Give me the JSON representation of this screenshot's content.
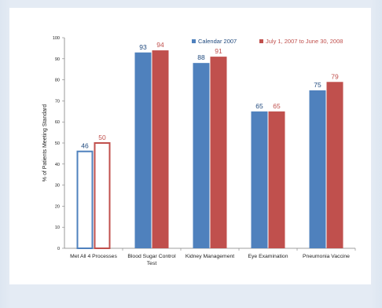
{
  "chart_data": {
    "type": "bar",
    "ylabel": "% of Patients Meeting Standard",
    "ylim": [
      0,
      100
    ],
    "yticks": [
      0,
      10,
      20,
      30,
      40,
      50,
      60,
      70,
      80,
      90,
      100
    ],
    "categories": [
      [
        "Met All 4 Processes"
      ],
      [
        "Blood Sugar Control",
        "Test"
      ],
      [
        "Kidney Management"
      ],
      [
        "Eye Examination"
      ],
      [
        "Pneumonia Vaccine"
      ]
    ],
    "series": [
      {
        "name": "Calendar 2007",
        "color": "#4f81bd",
        "values": [
          46,
          93,
          88,
          65,
          75
        ]
      },
      {
        "name": "July 1, 2007 to June 30, 2008",
        "color": "#c0504d",
        "values": [
          50,
          94,
          91,
          65,
          79
        ]
      }
    ],
    "outlined_first_category": true,
    "data_label_colors": [
      "#1f497d",
      "#c0504d"
    ],
    "legend_position": "top-right",
    "grid": false
  }
}
